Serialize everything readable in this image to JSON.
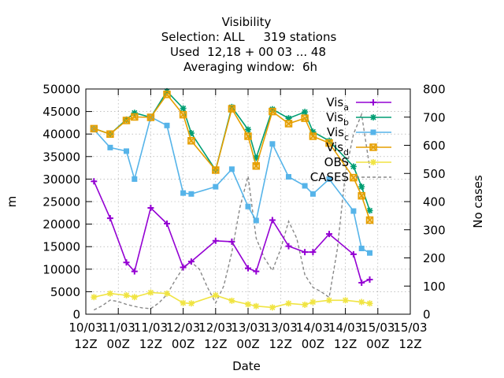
{
  "chart_data": {
    "type": "line",
    "title_lines": [
      "Visibility",
      "Selection: ALL     319 stations",
      "Used  12,18 + 00 03 ... 48",
      "Averaging window:  6h"
    ],
    "xlabel": "Date",
    "ylabel": "m",
    "y2label": "No cases",
    "xlim": [
      0,
      120
    ],
    "ylim": [
      0,
      50000
    ],
    "y2lim": [
      0,
      800
    ],
    "x_ticks": [
      {
        "x": 0,
        "l1": "10/03",
        "l2": "12Z"
      },
      {
        "x": 12,
        "l1": "11/03",
        "l2": "00Z"
      },
      {
        "x": 24,
        "l1": "11/03",
        "l2": "12Z"
      },
      {
        "x": 36,
        "l1": "12/03",
        "l2": "00Z"
      },
      {
        "x": 48,
        "l1": "12/03",
        "l2": "12Z"
      },
      {
        "x": 60,
        "l1": "13/03",
        "l2": "00Z"
      },
      {
        "x": 72,
        "l1": "13/03",
        "l2": "12Z"
      },
      {
        "x": 84,
        "l1": "14/03",
        "l2": "00Z"
      },
      {
        "x": 96,
        "l1": "14/03",
        "l2": "12Z"
      },
      {
        "x": 108,
        "l1": "15/03",
        "l2": "00Z"
      },
      {
        "x": 120,
        "l1": "15/03",
        "l2": "12Z"
      }
    ],
    "y_ticks": [
      0,
      5000,
      10000,
      15000,
      20000,
      25000,
      30000,
      35000,
      40000,
      45000,
      50000
    ],
    "y2_ticks": [
      0,
      100,
      200,
      300,
      400,
      500,
      600,
      700,
      800
    ],
    "grid": true,
    "legend_position": "top-right",
    "series": [
      {
        "name": "Vis",
        "sub": "a",
        "color": "#9400d3",
        "marker": "plus",
        "axis": "y",
        "x": [
          3,
          9,
          15,
          18,
          24,
          30,
          36,
          39,
          48,
          54,
          60,
          63,
          69,
          75,
          81,
          84,
          90,
          99,
          102,
          105
        ],
        "y": [
          29500,
          21300,
          11500,
          9500,
          23600,
          20100,
          10400,
          11700,
          16300,
          16100,
          10200,
          9500,
          20900,
          15100,
          13800,
          13800,
          17800,
          13300,
          7000,
          7700
        ]
      },
      {
        "name": "Vis",
        "sub": "b",
        "color": "#009e73",
        "marker": "star",
        "axis": "y",
        "x": [
          3,
          9,
          15,
          18,
          24,
          30,
          36,
          39,
          48,
          54,
          60,
          63,
          69,
          75,
          81,
          84,
          90,
          99,
          102,
          105
        ],
        "y": [
          41200,
          40000,
          43200,
          44700,
          43700,
          49500,
          45700,
          40200,
          32000,
          46000,
          41000,
          34700,
          45500,
          43500,
          44900,
          40500,
          38500,
          32800,
          28300,
          23000
        ]
      },
      {
        "name": "Vis",
        "sub": "c",
        "color": "#56b4e9",
        "marker": "box",
        "axis": "y",
        "x": [
          3,
          9,
          15,
          18,
          24,
          30,
          36,
          39,
          48,
          54,
          60,
          63,
          69,
          75,
          81,
          84,
          90,
          99,
          102,
          105
        ],
        "y": [
          41000,
          37000,
          36200,
          30000,
          43800,
          41900,
          26900,
          26700,
          28300,
          32200,
          23900,
          20800,
          37800,
          30500,
          28500,
          26700,
          30000,
          22900,
          14600,
          13600
        ]
      },
      {
        "name": "Vis",
        "sub": "d",
        "color": "#e69f00",
        "marker": "xbox",
        "axis": "y",
        "x": [
          3,
          9,
          15,
          18,
          24,
          30,
          36,
          39,
          48,
          54,
          60,
          63,
          69,
          75,
          81,
          84,
          90,
          99,
          102,
          105
        ],
        "y": [
          41200,
          40000,
          43000,
          43800,
          43700,
          48800,
          44300,
          38500,
          32000,
          45600,
          39500,
          32900,
          45000,
          42300,
          43500,
          39500,
          38000,
          30300,
          26300,
          20900
        ]
      },
      {
        "name": "OBS",
        "sub": "",
        "color": "#f0e442",
        "marker": "star",
        "axis": "y",
        "x": [
          3,
          9,
          15,
          18,
          24,
          30,
          36,
          39,
          48,
          54,
          60,
          63,
          69,
          75,
          81,
          84,
          90,
          96,
          102,
          105
        ],
        "y": [
          3800,
          4600,
          4200,
          3800,
          4800,
          4600,
          2500,
          2400,
          4200,
          3000,
          2200,
          1800,
          1500,
          2400,
          2100,
          2700,
          3100,
          3100,
          2700,
          2400
        ]
      },
      {
        "name": "CASES",
        "sub": "",
        "color": "#888888",
        "marker": "none",
        "dashed": true,
        "axis": "y2",
        "x": [
          3,
          6,
          9,
          12,
          15,
          18,
          21,
          24,
          27,
          30,
          33,
          36,
          39,
          42,
          45,
          48,
          51,
          54,
          57,
          60,
          63,
          66,
          69,
          72,
          75,
          78,
          81,
          84,
          87,
          90,
          93,
          96,
          99,
          102,
          105
        ],
        "y": [
          15,
          30,
          50,
          45,
          35,
          28,
          22,
          20,
          40,
          70,
          120,
          165,
          185,
          160,
          95,
          40,
          100,
          220,
          380,
          490,
          270,
          200,
          155,
          230,
          330,
          270,
          140,
          95,
          80,
          60,
          230,
          500,
          640,
          710,
          520
        ]
      }
    ]
  }
}
